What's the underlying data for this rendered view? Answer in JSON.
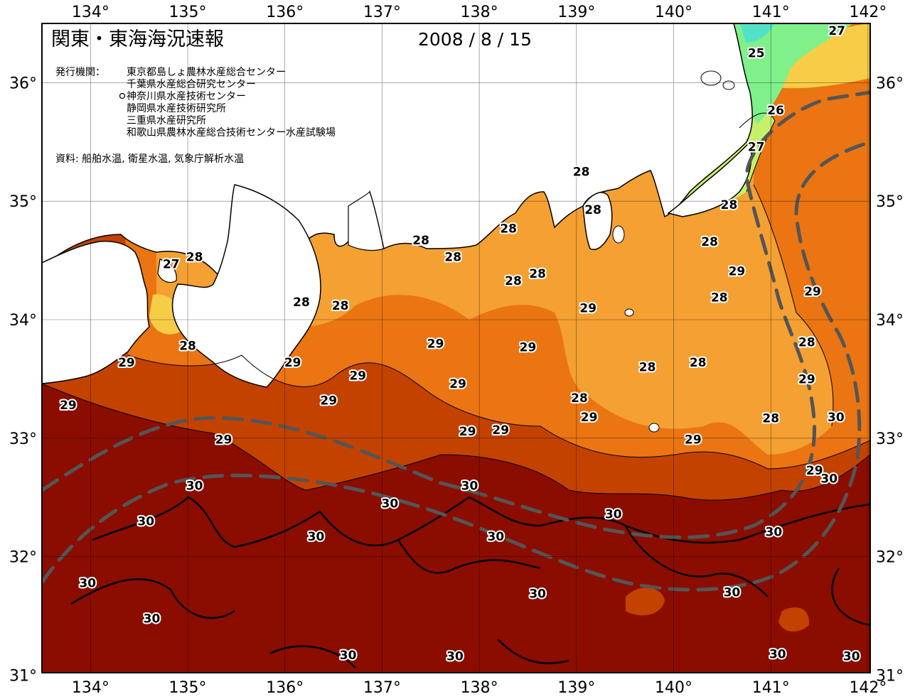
{
  "title": "関東・東海海況速報",
  "date": "2008 / 8 / 15",
  "agencies_label": "発行機関：",
  "agencies": [
    "東京都島しょ農林水産総合センター",
    "千葉県水産総合研究センター",
    "神奈川県水産技術センター",
    "静岡県水産技術研究所",
    "三重県水産研究所",
    "和歌山県農林水産総合技術センター水産試験場"
  ],
  "sources": "資料: 船舶水温, 衛星水温, 気象庁解析水温",
  "lon_ticks": [
    "134°",
    "135°",
    "136°",
    "137°",
    "138°",
    "139°",
    "140°",
    "141°",
    "142°"
  ],
  "lat_ticks": [
    "36°",
    "35°",
    "34°",
    "33°",
    "32°",
    "31°"
  ],
  "contour_labels": [
    {
      "text": "27",
      "lon": 141.68,
      "lat": 36.44
    },
    {
      "text": "25",
      "lon": 140.85,
      "lat": 36.25
    },
    {
      "text": "26",
      "lon": 141.05,
      "lat": 35.77
    },
    {
      "text": "27",
      "lon": 140.85,
      "lat": 35.46
    },
    {
      "text": "27",
      "lon": 134.83,
      "lat": 34.47
    },
    {
      "text": "28",
      "lon": 135.07,
      "lat": 34.53
    },
    {
      "text": "28",
      "lon": 139.05,
      "lat": 35.25
    },
    {
      "text": "28",
      "lon": 139.17,
      "lat": 34.93
    },
    {
      "text": "28",
      "lon": 140.57,
      "lat": 34.97
    },
    {
      "text": "28",
      "lon": 138.3,
      "lat": 34.77
    },
    {
      "text": "28",
      "lon": 137.4,
      "lat": 34.67
    },
    {
      "text": "28",
      "lon": 140.37,
      "lat": 34.66
    },
    {
      "text": "28",
      "lon": 137.73,
      "lat": 34.53
    },
    {
      "text": "28",
      "lon": 138.6,
      "lat": 34.39
    },
    {
      "text": "28",
      "lon": 138.35,
      "lat": 34.33
    },
    {
      "text": "28",
      "lon": 136.17,
      "lat": 34.15
    },
    {
      "text": "28",
      "lon": 136.57,
      "lat": 34.12
    },
    {
      "text": "28",
      "lon": 140.47,
      "lat": 34.19
    },
    {
      "text": "28",
      "lon": 135.0,
      "lat": 33.78
    },
    {
      "text": "28",
      "lon": 141.37,
      "lat": 33.81
    },
    {
      "text": "28",
      "lon": 139.73,
      "lat": 33.6
    },
    {
      "text": "28",
      "lon": 140.25,
      "lat": 33.64
    },
    {
      "text": "28",
      "lon": 139.03,
      "lat": 33.34
    },
    {
      "text": "28",
      "lon": 141.0,
      "lat": 33.17
    },
    {
      "text": "29",
      "lon": 140.65,
      "lat": 34.41
    },
    {
      "text": "29",
      "lon": 141.43,
      "lat": 34.24
    },
    {
      "text": "29",
      "lon": 139.12,
      "lat": 34.1
    },
    {
      "text": "29",
      "lon": 137.55,
      "lat": 33.8
    },
    {
      "text": "29",
      "lon": 138.5,
      "lat": 33.77
    },
    {
      "text": "29",
      "lon": 134.37,
      "lat": 33.64
    },
    {
      "text": "29",
      "lon": 136.08,
      "lat": 33.64
    },
    {
      "text": "29",
      "lon": 136.75,
      "lat": 33.53
    },
    {
      "text": "29",
      "lon": 141.37,
      "lat": 33.5
    },
    {
      "text": "29",
      "lon": 137.78,
      "lat": 33.46
    },
    {
      "text": "29",
      "lon": 136.45,
      "lat": 33.32
    },
    {
      "text": "29",
      "lon": 133.77,
      "lat": 33.28
    },
    {
      "text": "29",
      "lon": 139.13,
      "lat": 33.18
    },
    {
      "text": "29",
      "lon": 138.22,
      "lat": 33.07
    },
    {
      "text": "29",
      "lon": 137.88,
      "lat": 33.06
    },
    {
      "text": "29",
      "lon": 135.37,
      "lat": 32.99
    },
    {
      "text": "29",
      "lon": 140.2,
      "lat": 32.99
    },
    {
      "text": "30",
      "lon": 141.67,
      "lat": 33.18
    },
    {
      "text": "29",
      "lon": 141.45,
      "lat": 32.73
    },
    {
      "text": "30",
      "lon": 141.6,
      "lat": 32.66
    },
    {
      "text": "30",
      "lon": 135.07,
      "lat": 32.6
    },
    {
      "text": "30",
      "lon": 137.9,
      "lat": 32.6
    },
    {
      "text": "30",
      "lon": 137.08,
      "lat": 32.45
    },
    {
      "text": "30",
      "lon": 134.57,
      "lat": 32.3
    },
    {
      "text": "30",
      "lon": 139.38,
      "lat": 32.36
    },
    {
      "text": "30",
      "lon": 136.32,
      "lat": 32.17
    },
    {
      "text": "30",
      "lon": 138.17,
      "lat": 32.17
    },
    {
      "text": "30",
      "lon": 141.03,
      "lat": 32.21
    },
    {
      "text": "30",
      "lon": 133.97,
      "lat": 31.78
    },
    {
      "text": "30",
      "lon": 138.6,
      "lat": 31.69
    },
    {
      "text": "30",
      "lon": 140.6,
      "lat": 31.7
    },
    {
      "text": "30",
      "lon": 134.63,
      "lat": 31.48
    },
    {
      "text": "30",
      "lon": 136.65,
      "lat": 31.17
    },
    {
      "text": "30",
      "lon": 137.75,
      "lat": 31.16
    },
    {
      "text": "30",
      "lon": 141.07,
      "lat": 31.18
    },
    {
      "text": "30",
      "lon": 141.83,
      "lat": 31.16
    }
  ],
  "colors": {
    "t30": "#8b0d00",
    "t29": "#c44200",
    "t28": "#ea7512",
    "t27": "#f4a032",
    "t26": "#f7cd48",
    "t25": "#c4f06a",
    "t24": "#7ff08a",
    "t23": "#52e2c9",
    "land": "#ffffff",
    "kuroshio": "#555555"
  }
}
